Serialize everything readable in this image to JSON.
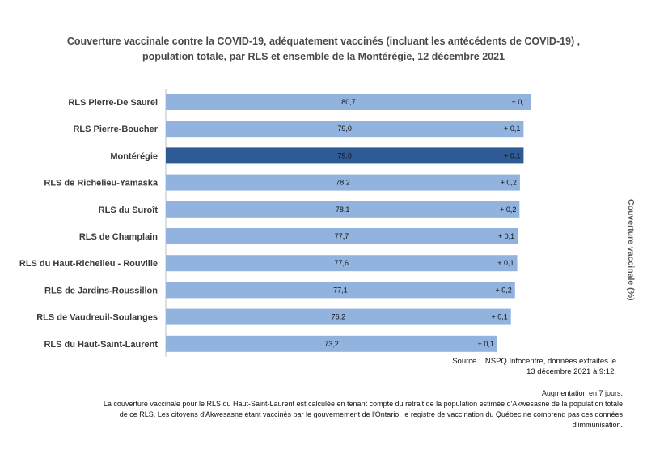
{
  "title_lines": [
    "Couverture vaccinale contre la COVID-19, adéquatement vaccinés (incluant les antécédents de COVID-19) ,",
    "population totale, par RLS et ensemble de la Montérégie, 12 décembre 2021"
  ],
  "y_axis_label": "Couverture vaccinale (%)",
  "source_lines": [
    "Source : INSPQ Infocentre, données extraites le",
    "13 décembre 2021 à  9:12."
  ],
  "note_lines": [
    "Augmentation en 7 jours.",
    "La couverture vaccinale pour le RLS du Haut-Saint-Laurent est calculée en tenant compte du retrait de la population estimée d'Akwesasne de la population totale",
    "de ce RLS. Les citoyens d'Akwesasne étant vaccinés par le gouvernement de l'Ontario, le registre de vaccination du Québec ne comprend pas ces données",
    "d'immunisation."
  ],
  "colors": {
    "bar": "#91b3de",
    "highlight": "#2f5b95"
  },
  "chart_data": {
    "type": "bar",
    "orientation": "horizontal",
    "categories": [
      "RLS Pierre-De Saurel",
      "RLS Pierre-Boucher",
      "Montérégie",
      "RLS de Richelieu-Yamaska",
      "RLS du Suroît",
      "RLS de Champlain",
      "RLS du Haut-Richelieu - Rouville",
      "RLS de Jardins-Roussillon",
      "RLS de Vaudreuil-Soulanges",
      "RLS du Haut-Saint-Laurent"
    ],
    "values": [
      80.7,
      79.0,
      79.0,
      78.2,
      78.1,
      77.7,
      77.6,
      77.1,
      76.2,
      73.2
    ],
    "value_labels": [
      "80,7",
      "79,0",
      "79,0",
      "78,2",
      "78,1",
      "77,7",
      "77,6",
      "77,1",
      "76,2",
      "73,2"
    ],
    "increase_labels": [
      "+ 0,1",
      "+ 0,1",
      "+ 0,1",
      "+ 0,2",
      "+ 0,2",
      "+ 0,1",
      "+ 0,1",
      "+ 0,2",
      "+ 0,1",
      "+ 0,1"
    ],
    "highlight_index": 2,
    "xlim": [
      0,
      100
    ],
    "grid": false,
    "legend": "none"
  }
}
